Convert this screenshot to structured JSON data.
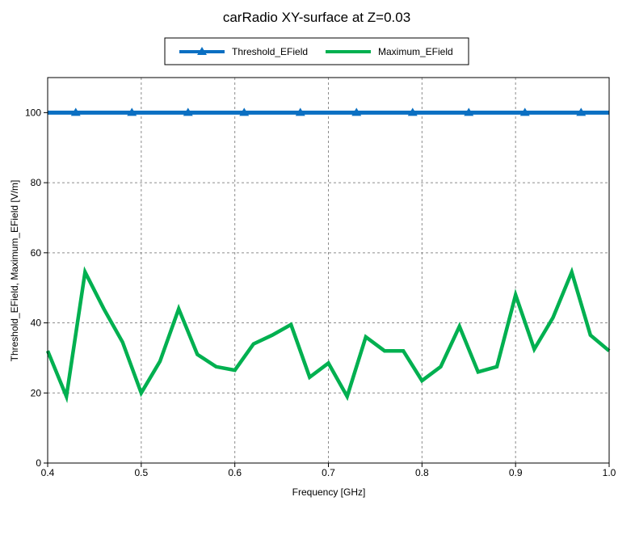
{
  "chart_data": {
    "type": "line",
    "title": "carRadio XY-surface at Z=0.03",
    "xlabel": "Frequency [GHz]",
    "ylabel": "Threshold_EField, Maximum_EField [V/m]",
    "xlim": [
      0.4,
      1.0
    ],
    "ylim": [
      0,
      110
    ],
    "x_ticks": [
      "0.4",
      "0.5",
      "0.6",
      "0.7",
      "0.8",
      "0.9",
      "1.0"
    ],
    "y_ticks": [
      "0",
      "20",
      "40",
      "60",
      "80",
      "100"
    ],
    "grid": true,
    "legend_position": "top-center",
    "series": [
      {
        "name": "Threshold_EField",
        "color": "#0a6fc2",
        "marker": "triangle",
        "x": [
          0.4,
          1.0
        ],
        "y": [
          100,
          100
        ],
        "marker_x": [
          0.43,
          0.49,
          0.55,
          0.61,
          0.67,
          0.73,
          0.79,
          0.85,
          0.91,
          0.97
        ]
      },
      {
        "name": "Maximum_EField",
        "color": "#00b050",
        "marker": "none",
        "x": [
          0.4,
          0.42,
          0.44,
          0.46,
          0.48,
          0.5,
          0.52,
          0.54,
          0.56,
          0.58,
          0.6,
          0.62,
          0.64,
          0.66,
          0.68,
          0.7,
          0.72,
          0.74,
          0.76,
          0.78,
          0.8,
          0.82,
          0.84,
          0.86,
          0.88,
          0.9,
          0.92,
          0.94,
          0.96,
          0.98,
          1.0
        ],
        "y": [
          32,
          19,
          54.5,
          44,
          34.5,
          20,
          29,
          44,
          31,
          27.5,
          26.5,
          34,
          36.5,
          39.5,
          24.5,
          28.5,
          19,
          36,
          32,
          32,
          23.5,
          27.5,
          39,
          26,
          27.5,
          48,
          32.5,
          41.5,
          54.5,
          36.5,
          32
        ]
      }
    ]
  }
}
